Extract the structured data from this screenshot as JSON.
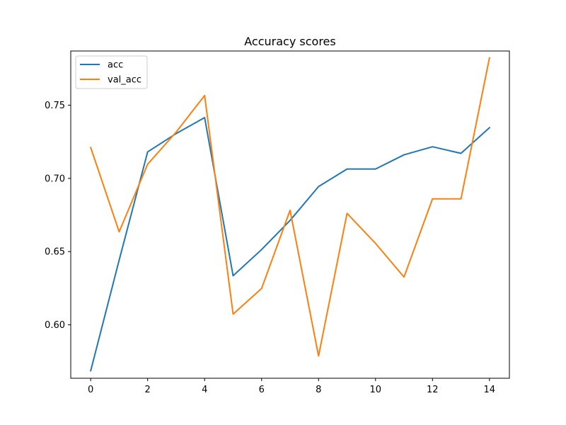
{
  "chart_data": {
    "type": "line",
    "title": "Accuracy scores",
    "xlabel": "",
    "ylabel": "",
    "xlim": [
      -0.7,
      14.7
    ],
    "ylim": [
      0.5635,
      0.787
    ],
    "xticks": [
      0,
      2,
      4,
      6,
      8,
      10,
      12,
      14
    ],
    "yticks": [
      0.6,
      0.65,
      0.7,
      0.75
    ],
    "ytick_labels": [
      "0.60",
      "0.65",
      "0.70",
      "0.75"
    ],
    "grid": false,
    "legend_position": "top-left",
    "x": [
      0,
      1,
      2,
      3,
      4,
      5,
      6,
      7,
      8,
      9,
      10,
      11,
      12,
      13,
      14
    ],
    "series": [
      {
        "name": "acc",
        "color": "#1f77b4",
        "values": [
          0.5686,
          0.6442,
          0.7181,
          0.7306,
          0.7415,
          0.6335,
          0.6514,
          0.6713,
          0.6944,
          0.7064,
          0.7064,
          0.7161,
          0.7216,
          0.7171,
          0.7346
        ]
      },
      {
        "name": "val_acc",
        "color": "#ff7f0e",
        "values": [
          0.7211,
          0.6635,
          0.7097,
          0.7316,
          0.7566,
          0.6073,
          0.6248,
          0.6782,
          0.5787,
          0.6761,
          0.6556,
          0.6326,
          0.686,
          0.686,
          0.7823
        ]
      }
    ]
  }
}
